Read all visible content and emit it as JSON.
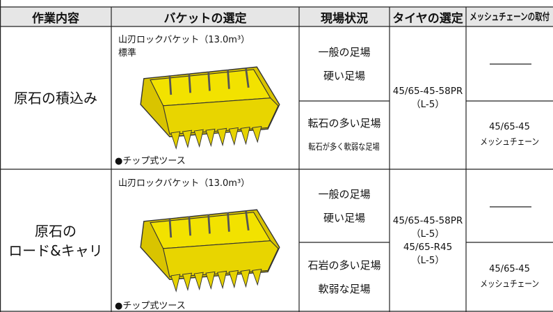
{
  "table": {
    "columns": [
      "作業内容",
      "バケットの選定",
      "現場状況",
      "タイヤの選定",
      "メッシュチェーンの取付"
    ],
    "rows": [
      {
        "work": [
          "原石の積込み"
        ],
        "bucket": {
          "name": "山刃ロックバケット（13.0m³）",
          "note": "標準",
          "teeth": "●チップ式ツース"
        },
        "conditions": [
          [
            "一般の足場",
            "硬い足場"
          ],
          [
            "転石の多い足場",
            "転石が多く軟弱な足場"
          ]
        ],
        "tire": [
          "45/65-45-58PR",
          "（L-5）"
        ],
        "chain": [
          "45/65-45",
          "メッシュチェーン"
        ]
      },
      {
        "work": [
          "原石の",
          "ロード&キャリ"
        ],
        "bucket": {
          "name": "山刃ロックバケット（13.0m³）",
          "teeth": "●チップ式ツース"
        },
        "conditions": [
          [
            "一般の足場",
            "硬い足場"
          ],
          [
            "石岩の多い足場",
            "軟弱な足場"
          ]
        ],
        "tire": [
          "45/65-45-58PR",
          "（L-5）",
          "45/65-R45",
          "（L-5）"
        ],
        "chain": [
          "45/65-45",
          "メッシュチェーン"
        ]
      }
    ]
  }
}
